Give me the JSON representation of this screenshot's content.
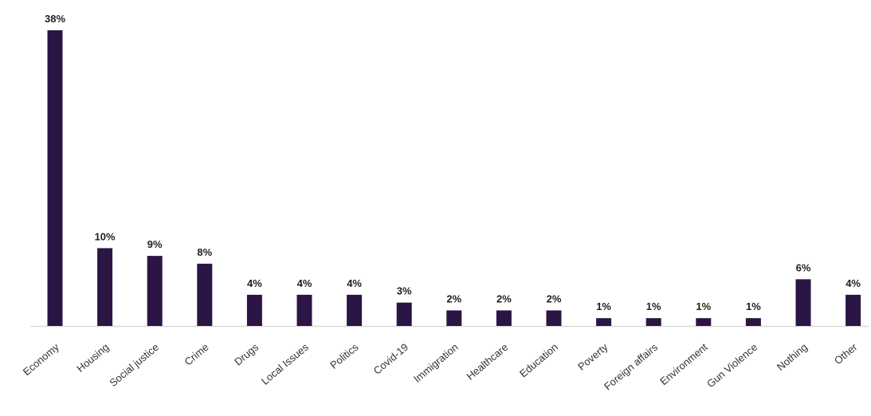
{
  "chart_data": {
    "type": "bar",
    "title": "",
    "xlabel": "",
    "ylabel": "",
    "categories": [
      "Economy",
      "Housing",
      "Social justice",
      "Crime",
      "Drugs",
      "Local Issues",
      "Politics",
      "Covid-19",
      "Immigration",
      "Healthcare",
      "Education",
      "Poverty",
      "Foreign affairs",
      "Environment",
      "Gun Violence",
      "Nothing",
      "Other"
    ],
    "values": [
      38,
      10,
      9,
      8,
      4,
      4,
      4,
      3,
      2,
      2,
      2,
      1,
      1,
      1,
      1,
      6,
      4
    ],
    "value_labels": [
      "38%",
      "10%",
      "9%",
      "8%",
      "4%",
      "4%",
      "4%",
      "3%",
      "2%",
      "2%",
      "2%",
      "1%",
      "1%",
      "1%",
      "1%",
      "6%",
      "4%"
    ],
    "ylim": [
      0,
      38
    ],
    "grid": false,
    "bar_color": "#2b1545"
  }
}
